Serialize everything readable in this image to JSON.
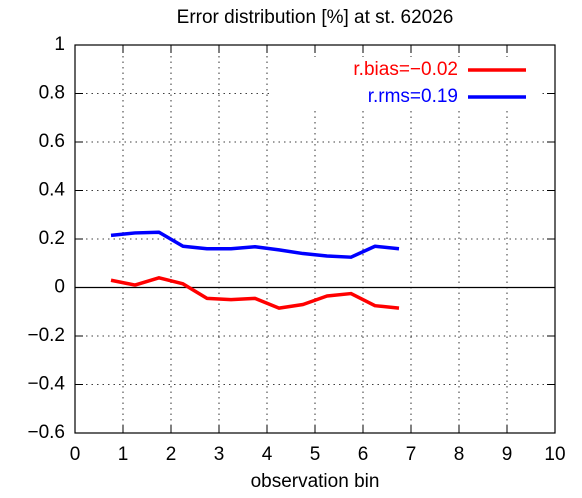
{
  "chart_data": {
    "type": "line",
    "title": "Error distribution [%] at st. 62026",
    "xlabel": "observation bin",
    "x": [
      0.75,
      1.25,
      1.75,
      2.25,
      2.75,
      3.25,
      3.75,
      4.25,
      4.75,
      5.25,
      5.75,
      6.25,
      6.75
    ],
    "series": [
      {
        "name": "r.bias=−0.02",
        "color": "#ff0000",
        "values": [
          0.03,
          0.01,
          0.04,
          0.015,
          -0.045,
          -0.05,
          -0.045,
          -0.085,
          -0.07,
          -0.035,
          -0.025,
          -0.075,
          -0.085
        ]
      },
      {
        "name": "r.rms=0.19",
        "color": "#0000ff",
        "values": [
          0.215,
          0.225,
          0.228,
          0.17,
          0.16,
          0.16,
          0.168,
          0.155,
          0.14,
          0.13,
          0.125,
          0.17,
          0.16
        ]
      }
    ],
    "xlim": [
      0,
      10
    ],
    "xticks": [
      0,
      1,
      2,
      3,
      4,
      5,
      6,
      7,
      8,
      9,
      10
    ],
    "ylim": [
      -0.6,
      1
    ],
    "yticks": [
      {
        "value": -0.6,
        "label": "−0.6"
      },
      {
        "value": -0.4,
        "label": "−0.4"
      },
      {
        "value": -0.2,
        "label": "−0.2"
      },
      0,
      0.2,
      0.4,
      0.6,
      0.8,
      1
    ],
    "grid": true,
    "legend": "upper right"
  }
}
